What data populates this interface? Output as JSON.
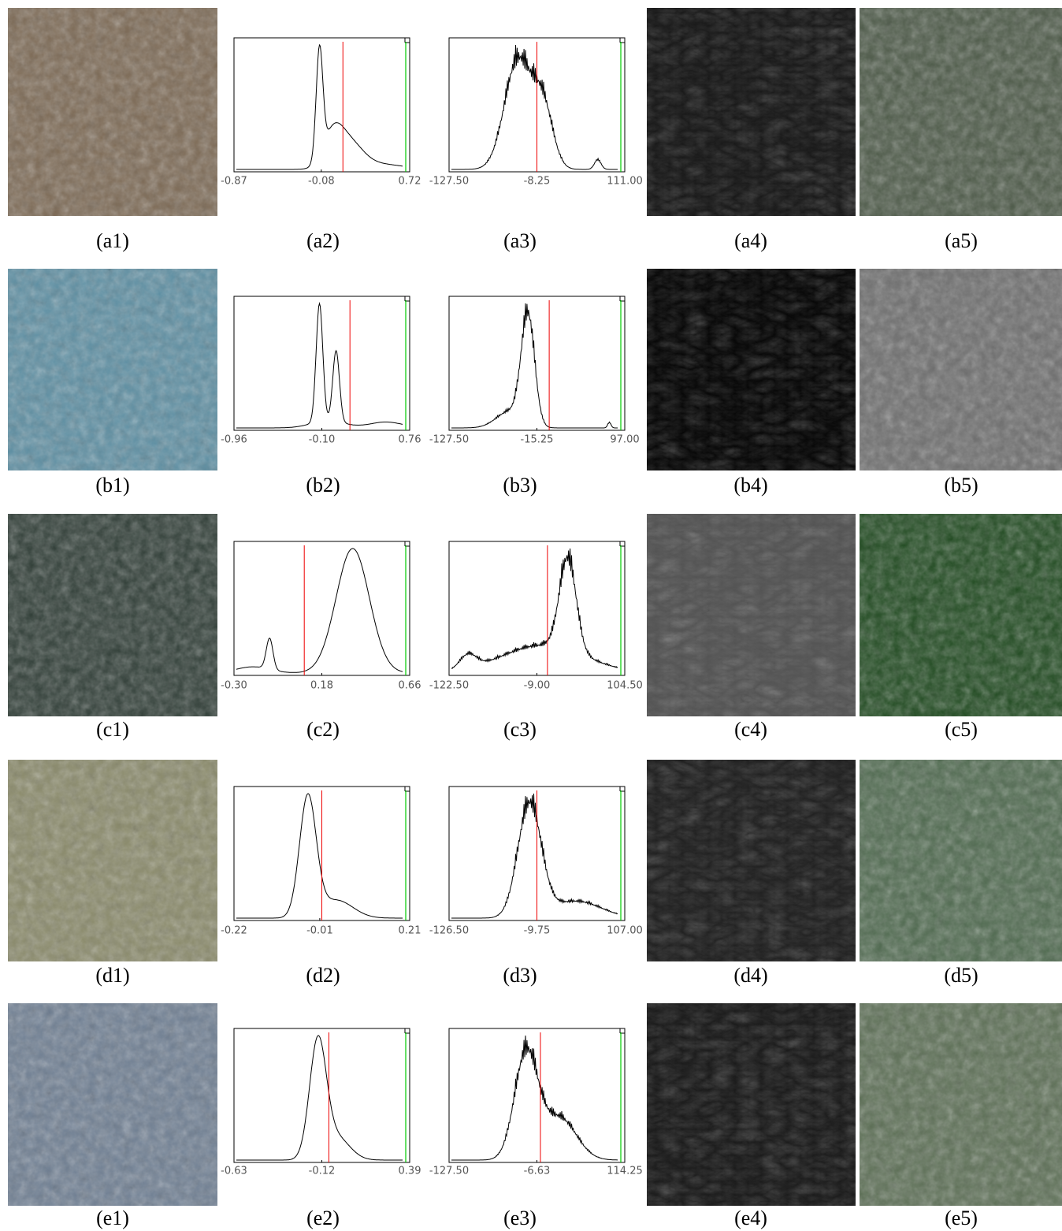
{
  "rows": [
    {
      "labels": [
        "(a1)",
        "(a2)",
        "(a3)",
        "(a4)",
        "(a5)"
      ],
      "hist2": {
        "xticks": [
          {
            "value": -0.87,
            "label": "-0.87"
          },
          {
            "value": -0.08,
            "label": "-0.08"
          },
          {
            "value": 0.72,
            "label": "0.72"
          }
        ]
      },
      "hist3": {
        "xticks": [
          {
            "value": -127.5,
            "label": "-127.50"
          },
          {
            "value": -8.25,
            "label": "-8.25"
          },
          {
            "value": 111,
            "label": "111.00"
          }
        ]
      }
    },
    {
      "labels": [
        "(b1)",
        "(b2)",
        "(b3)",
        "(b4)",
        "(b5)"
      ],
      "hist2": {
        "xticks": [
          {
            "value": -0.96,
            "label": "-0.96"
          },
          {
            "value": -0.1,
            "label": "-0.10"
          },
          {
            "value": 0.76,
            "label": "0.76"
          }
        ]
      },
      "hist3": {
        "xticks": [
          {
            "value": -127.5,
            "label": "-127.50"
          },
          {
            "value": -15.25,
            "label": "-15.25"
          },
          {
            "value": 97,
            "label": "97.00"
          }
        ]
      }
    },
    {
      "labels": [
        "(c1)",
        "(c2)",
        "(c3)",
        "(c4)",
        "(c5)"
      ],
      "hist2": {
        "xticks": [
          {
            "value": -0.3,
            "label": "-0.30"
          },
          {
            "value": 0.18,
            "label": "0.18"
          },
          {
            "value": 0.66,
            "label": "0.66"
          }
        ]
      },
      "hist3": {
        "xticks": [
          {
            "value": -122.5,
            "label": "-122.50"
          },
          {
            "value": -9,
            "label": "-9.00"
          },
          {
            "value": 104.5,
            "label": "104.50"
          }
        ]
      }
    },
    {
      "labels": [
        "(d1)",
        "(d2)",
        "(d3)",
        "(d4)",
        "(d5)"
      ],
      "hist2": {
        "xticks": [
          {
            "value": -0.22,
            "label": "-0.22"
          },
          {
            "value": -0.01,
            "label": "-0.01"
          },
          {
            "value": 0.21,
            "label": "0.21"
          }
        ]
      },
      "hist3": {
        "xticks": [
          {
            "value": -126.5,
            "label": "-126.50"
          },
          {
            "value": -9.75,
            "label": "-9.75"
          },
          {
            "value": 107,
            "label": "107.00"
          }
        ]
      }
    },
    {
      "labels": [
        "(e1)",
        "(e2)",
        "(e3)",
        "(e4)",
        "(e5)"
      ],
      "hist2": {
        "xticks": [
          {
            "value": -0.63,
            "label": "-0.63"
          },
          {
            "value": -0.12,
            "label": "-0.12"
          },
          {
            "value": 0.39,
            "label": "0.39"
          }
        ]
      },
      "hist3": {
        "xticks": [
          {
            "value": -127.5,
            "label": "-127.50"
          },
          {
            "value": -6.63,
            "label": "-6.63"
          },
          {
            "value": 114.25,
            "label": "114.25"
          }
        ]
      }
    }
  ]
}
